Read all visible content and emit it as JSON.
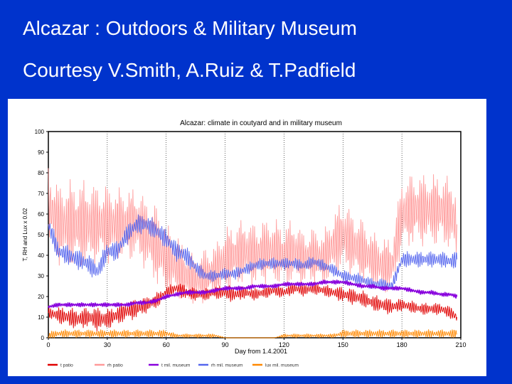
{
  "slide": {
    "title": "Alcazar : Outdoors & Military Museum",
    "subtitle": "Courtesy V.Smith, A.Ruiz & T.Padfield",
    "background_color": "#0033cc"
  },
  "chart_data": {
    "type": "line",
    "title": "Alcazar: climate in coutyard and in military museum",
    "xlabel": "Day from 1.4.2001",
    "ylabel": "T, RH and Lux x 0.02",
    "xlim": [
      0,
      210
    ],
    "ylim": [
      0,
      100
    ],
    "x_ticks": [
      0,
      30,
      60,
      90,
      120,
      150,
      180,
      210
    ],
    "y_ticks": [
      0,
      10,
      20,
      30,
      40,
      50,
      60,
      70,
      80,
      90,
      100
    ],
    "grid": "dotted vertical lines at x ticks",
    "legend_position": "bottom",
    "series": [
      {
        "name": "t patio",
        "color": "#e00000",
        "x": [
          0,
          5,
          10,
          15,
          20,
          25,
          30,
          35,
          40,
          45,
          50,
          55,
          60,
          65,
          70,
          75,
          80,
          85,
          90,
          95,
          100,
          105,
          110,
          115,
          120,
          125,
          130,
          135,
          140,
          145,
          150,
          155,
          160,
          165,
          170,
          175,
          180,
          185,
          190,
          195,
          200,
          205,
          208
        ],
        "y": [
          12,
          11,
          10,
          9,
          10,
          9,
          9,
          11,
          13,
          14,
          16,
          18,
          22,
          24,
          22,
          21,
          21,
          22,
          22,
          21,
          22,
          21,
          22,
          23,
          22,
          24,
          23,
          24,
          23,
          22,
          21,
          20,
          19,
          17,
          16,
          15,
          16,
          15,
          14,
          14,
          14,
          12,
          10
        ],
        "amplitude": [
          3,
          4,
          5,
          5,
          5,
          6,
          5,
          5,
          5,
          5,
          4,
          4,
          3,
          3,
          4,
          3,
          3,
          3,
          4,
          4,
          3,
          3,
          3,
          3,
          3,
          3,
          3,
          3,
          3,
          3,
          4,
          4,
          4,
          4,
          4,
          4,
          3,
          3,
          3,
          3,
          3,
          3,
          3
        ]
      },
      {
        "name": "rh patio",
        "color": "#ff9999",
        "x": [
          0,
          5,
          10,
          15,
          20,
          25,
          30,
          35,
          40,
          45,
          50,
          55,
          60,
          65,
          70,
          75,
          80,
          85,
          90,
          95,
          100,
          105,
          110,
          115,
          120,
          125,
          130,
          135,
          140,
          145,
          150,
          155,
          160,
          165,
          170,
          175,
          180,
          185,
          190,
          195,
          200,
          205,
          208
        ],
        "y": [
          65,
          55,
          55,
          55,
          55,
          55,
          55,
          55,
          55,
          55,
          50,
          45,
          38,
          35,
          30,
          28,
          30,
          32,
          38,
          40,
          42,
          40,
          42,
          42,
          40,
          42,
          38,
          40,
          38,
          45,
          50,
          45,
          42,
          38,
          35,
          35,
          60,
          62,
          62,
          62,
          62,
          60,
          55
        ],
        "amplitude": [
          20,
          20,
          22,
          22,
          22,
          20,
          20,
          18,
          18,
          18,
          18,
          20,
          18,
          16,
          14,
          12,
          14,
          14,
          16,
          16,
          16,
          16,
          16,
          16,
          16,
          16,
          14,
          14,
          14,
          16,
          18,
          16,
          16,
          14,
          14,
          14,
          18,
          18,
          18,
          18,
          18,
          18,
          18
        ]
      },
      {
        "name": "t mil. museum",
        "color": "#8800dd",
        "x": [
          0,
          5,
          10,
          15,
          20,
          25,
          30,
          35,
          40,
          45,
          50,
          55,
          60,
          65,
          70,
          75,
          80,
          85,
          90,
          95,
          100,
          105,
          110,
          115,
          120,
          125,
          130,
          135,
          140,
          145,
          150,
          155,
          160,
          165,
          170,
          175,
          180,
          185,
          190,
          195,
          200,
          205,
          208
        ],
        "y": [
          15,
          16,
          16,
          16,
          16,
          16,
          16,
          16,
          16,
          17,
          17,
          18,
          20,
          21,
          22,
          22,
          22,
          23,
          24,
          24,
          24,
          25,
          25,
          25,
          26,
          26,
          26,
          26,
          27,
          27,
          27,
          26,
          25,
          25,
          24,
          24,
          24,
          23,
          22,
          22,
          21,
          21,
          20
        ],
        "amplitude": [
          1,
          1,
          1,
          1,
          1,
          1,
          1,
          1,
          1,
          1,
          1,
          1,
          1,
          1,
          1,
          1,
          1,
          1,
          1,
          1,
          1,
          1,
          1,
          1,
          1,
          1,
          1,
          1,
          1,
          1,
          1,
          1,
          1,
          1,
          1,
          1,
          1,
          1,
          1,
          1,
          1,
          1,
          1
        ]
      },
      {
        "name": "rh mil. museum",
        "color": "#5566ee",
        "x": [
          0,
          5,
          10,
          15,
          20,
          25,
          30,
          35,
          40,
          45,
          50,
          55,
          60,
          65,
          70,
          75,
          80,
          85,
          90,
          95,
          100,
          105,
          110,
          115,
          120,
          125,
          130,
          135,
          140,
          145,
          150,
          155,
          160,
          165,
          170,
          175,
          180,
          185,
          190,
          195,
          200,
          205,
          208
        ],
        "y": [
          55,
          42,
          40,
          38,
          36,
          32,
          42,
          42,
          50,
          55,
          55,
          52,
          48,
          42,
          40,
          34,
          30,
          30,
          31,
          31,
          33,
          35,
          36,
          36,
          36,
          36,
          35,
          37,
          35,
          33,
          30,
          29,
          28,
          26,
          26,
          25,
          38,
          38,
          38,
          38,
          38,
          37,
          38
        ],
        "amplitude": [
          5,
          5,
          5,
          5,
          5,
          5,
          5,
          5,
          5,
          5,
          5,
          5,
          5,
          5,
          5,
          4,
          3,
          3,
          3,
          3,
          3,
          3,
          3,
          3,
          3,
          3,
          3,
          3,
          3,
          3,
          3,
          3,
          3,
          3,
          3,
          3,
          4,
          4,
          4,
          4,
          4,
          4,
          4
        ]
      },
      {
        "name": "lux mil. museum",
        "color": "#ff8800",
        "x": [
          0,
          5,
          10,
          15,
          20,
          25,
          30,
          35,
          40,
          45,
          50,
          55,
          60,
          65,
          70,
          75,
          80,
          85,
          90,
          95,
          100,
          105,
          110,
          115,
          120,
          125,
          130,
          135,
          140,
          145,
          150,
          155,
          160,
          165,
          170,
          175,
          180,
          185,
          190,
          195,
          200,
          205,
          208
        ],
        "y": [
          1,
          2,
          2,
          2,
          2,
          2,
          2,
          2,
          2,
          2,
          2,
          2,
          2,
          1,
          1,
          1,
          1,
          1,
          0,
          0,
          0,
          0,
          0,
          0,
          1,
          1,
          1,
          1,
          1,
          1,
          2,
          2,
          2,
          2,
          2,
          2,
          2,
          2,
          2,
          2,
          2,
          2,
          2
        ],
        "amplitude": [
          2,
          2,
          2,
          2,
          2,
          2,
          2,
          2,
          2,
          2,
          2,
          2,
          2,
          1,
          1,
          1,
          1,
          1,
          0,
          0,
          0,
          0,
          0,
          0,
          1,
          1,
          1,
          1,
          1,
          1,
          2,
          2,
          2,
          2,
          2,
          2,
          2,
          2,
          2,
          2,
          2,
          2,
          2
        ]
      }
    ]
  }
}
